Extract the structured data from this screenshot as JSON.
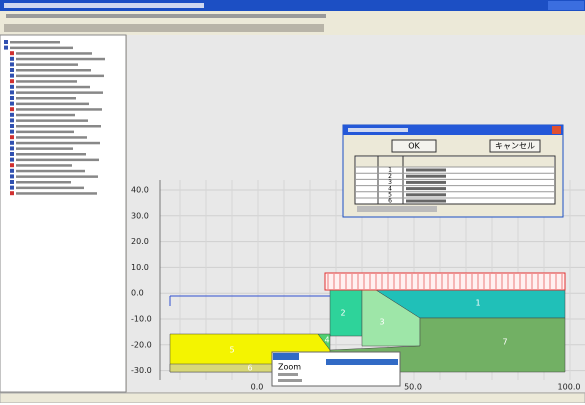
{
  "dialog": {
    "buttons": [
      "OK",
      "キャンセル"
    ],
    "rows": [
      "1",
      "2",
      "3",
      "4",
      "5",
      "6"
    ]
  },
  "canvas": {
    "yticks": [
      "40.0",
      "30.0",
      "20.0",
      "10.0",
      "0.0",
      "-10.0",
      "-20.0",
      "-30.0"
    ],
    "xticks": [
      "0.0",
      "50.0",
      "100.0"
    ],
    "regions": [
      "1",
      "2",
      "3",
      "4",
      "5",
      "6",
      "7"
    ]
  },
  "context_menu": {
    "items": [
      "Zoom"
    ]
  }
}
